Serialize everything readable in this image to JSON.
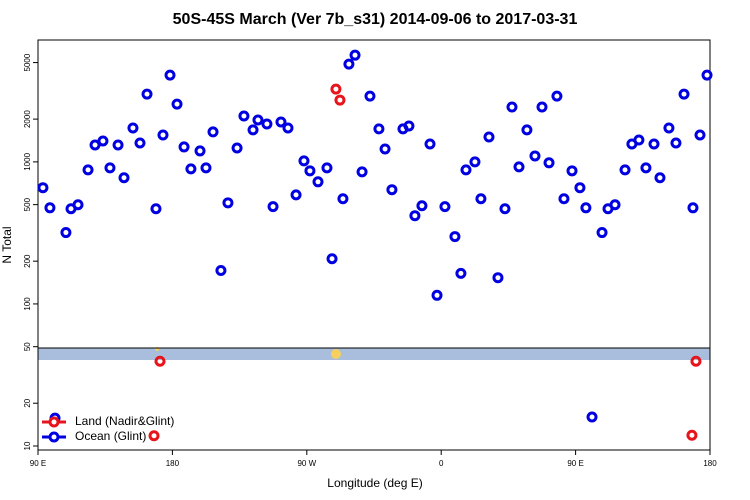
{
  "chart_data": {
    "type": "scatter",
    "title": "50S-45S March (Ver 7b_s31)   2014-09-06 to 2017-03-31",
    "x_label": "Longitude (deg E)",
    "y_label": "N Total",
    "xlim": [
      90,
      540
    ],
    "xticks": [
      {
        "value": 90,
        "label": "90 E"
      },
      180,
      {
        "value": 270,
        "label": "90 W"
      },
      {
        "value": 360,
        "label": "0"
      },
      {
        "value": 450,
        "label": "90 E"
      },
      {
        "value": 540,
        "label": "180"
      }
    ],
    "ylim": [
      9.37,
      7210
    ],
    "yscale": "log",
    "yticks": [
      10,
      20,
      50,
      100,
      200,
      500,
      1000,
      2000,
      5000
    ],
    "legend": "bottomleft",
    "series": [
      {
        "name": "Land (Nadir&Glint)",
        "color": "#e8141c",
        "x": [
          171.7,
          289.5,
          292.2,
          530.6,
          167.7,
          527.9
        ],
        "values": [
          39.5,
          3250,
          2723,
          39.5,
          11.8,
          11.9
        ]
      },
      {
        "name": "Ocean (Glint)",
        "color": "#0000e0",
        "x": [
          93.3,
          98,
          108.7,
          112.1,
          116.8,
          123.5,
          128.2,
          133.5,
          138.2,
          143.6,
          147.6,
          153.6,
          158.3,
          163,
          169,
          173.7,
          178.4,
          183.1,
          187.8,
          192.4,
          198.5,
          202.5,
          207.2,
          212.5,
          217.2,
          223.3,
          227.9,
          234,
          237.3,
          243.3,
          247.4,
          252.7,
          257.4,
          262.8,
          268.1,
          272.1,
          277.5,
          283.5,
          286.9,
          294.2,
          298.2,
          302.3,
          307,
          312.3,
          318.3,
          322.4,
          327,
          334.4,
          338.4,
          342.4,
          347.1,
          352.5,
          357.2,
          362.5,
          369.2,
          373.2,
          376.6,
          382.6,
          386.6,
          392,
          398,
          402.7,
          407.4,
          412.1,
          417.4,
          422.8,
          427.5,
          432.2,
          437.5,
          442.2,
          447.6,
          452.9,
          456.9,
          467.7,
          471.7,
          476.4,
          483.1,
          487.7,
          492.4,
          497.1,
          502.5,
          506.5,
          512.5,
          517.2,
          522.6,
          528.6,
          533.3,
          538,
          101.4,
          461
        ],
        "values": [
          658,
          475,
          318,
          468,
          499,
          879,
          1315,
          1403,
          908,
          1315,
          773,
          1733,
          1358,
          2998,
          468,
          1546,
          4083,
          2551,
          1274,
          893,
          1194,
          908,
          1625,
          172,
          515,
          1253,
          2103,
          1679,
          1972,
          1849,
          484,
          1910,
          1733,
          586,
          1016,
          865,
          724,
          908,
          208,
          550,
          4876,
          5637,
          851,
          2904,
          1708,
          1233,
          637,
          1708,
          1790,
          418,
          491,
          1336,
          115,
          484,
          298,
          164,
          879,
          1000,
          550,
          1496,
          153,
          468,
          2432,
          922,
          1679,
          1101,
          2432,
          985,
          2904,
          550,
          865,
          658,
          475,
          318,
          468,
          499,
          879,
          1336,
          1425,
          908,
          1336,
          773,
          1733,
          1358,
          2998,
          475,
          1546,
          4083,
          15.7,
          16.0
        ]
      }
    ]
  }
}
